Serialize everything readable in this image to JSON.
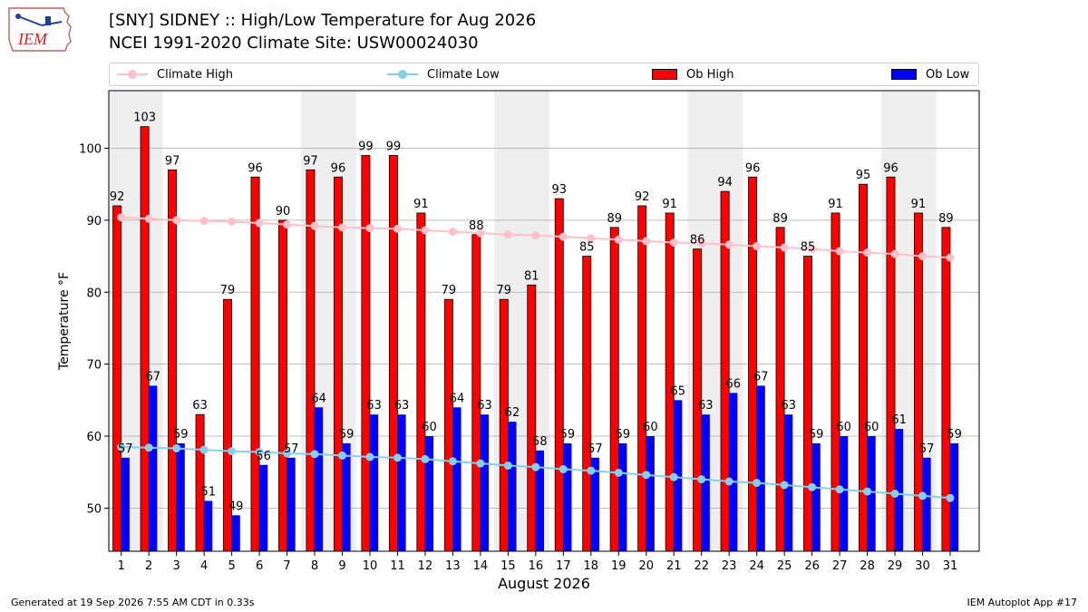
{
  "header": {
    "title_line1": "[SNY] SIDNEY :: High/Low Temperature for Aug 2026",
    "title_line2": "NCEI 1991-2020 Climate Site: USW00024030",
    "logo_text": "IEM"
  },
  "footer": {
    "left": "Generated at 19 Sep 2026 7:55 AM CDT in 0.33s",
    "right": "IEM Autoplot App #17"
  },
  "colors": {
    "ob_high": "#ff0000",
    "ob_low": "#0000ff",
    "climate_high": "#ffc0cb",
    "climate_low": "#87ceeb",
    "weekend_shade": "#eeeeee",
    "grid": "#aaaaaa"
  },
  "chart_data": {
    "type": "bar",
    "title": "[SNY] SIDNEY :: High/Low Temperature for Aug 2026",
    "subtitle": "NCEI 1991-2020 Climate Site: USW00024030",
    "xlabel": "August 2026",
    "ylabel": "Temperature °F",
    "ylim": [
      44,
      108
    ],
    "yticks": [
      50,
      60,
      70,
      80,
      90,
      100
    ],
    "grid": "horizontal",
    "legend_placement": "top",
    "categories": [
      "1",
      "2",
      "3",
      "4",
      "5",
      "6",
      "7",
      "8",
      "9",
      "10",
      "11",
      "12",
      "13",
      "14",
      "15",
      "16",
      "17",
      "18",
      "19",
      "20",
      "21",
      "22",
      "23",
      "24",
      "25",
      "26",
      "27",
      "28",
      "29",
      "30",
      "31"
    ],
    "weekend_days": [
      1,
      2,
      8,
      9,
      15,
      16,
      22,
      23,
      29,
      30
    ],
    "series": [
      {
        "name": "Climate High",
        "kind": "line",
        "values": [
          90.4,
          90.2,
          90.0,
          89.9,
          89.8,
          89.6,
          89.4,
          89.2,
          89.0,
          88.9,
          88.8,
          88.6,
          88.4,
          88.2,
          88.0,
          87.9,
          87.7,
          87.5,
          87.3,
          87.1,
          86.9,
          86.8,
          86.6,
          86.4,
          86.2,
          86.0,
          85.7,
          85.5,
          85.3,
          85.0,
          84.8
        ]
      },
      {
        "name": "Climate Low",
        "kind": "line",
        "values": [
          58.5,
          58.4,
          58.3,
          58.1,
          57.9,
          57.8,
          57.6,
          57.5,
          57.3,
          57.1,
          57.0,
          56.8,
          56.5,
          56.2,
          55.9,
          55.7,
          55.4,
          55.2,
          54.9,
          54.6,
          54.3,
          54.0,
          53.7,
          53.5,
          53.2,
          52.9,
          52.6,
          52.3,
          52.0,
          51.7,
          51.4
        ]
      },
      {
        "name": "Ob High",
        "kind": "bar",
        "values": [
          92,
          103,
          97,
          63,
          79,
          96,
          90,
          97,
          96,
          99,
          99,
          91,
          79,
          88,
          79,
          81,
          93,
          85,
          89,
          92,
          91,
          86,
          94,
          96,
          89,
          85,
          91,
          95,
          96,
          91,
          89
        ]
      },
      {
        "name": "Ob Low",
        "kind": "bar",
        "values": [
          57,
          67,
          59,
          51,
          49,
          56,
          57,
          64,
          59,
          63,
          63,
          60,
          64,
          63,
          62,
          58,
          59,
          57,
          59,
          60,
          65,
          63,
          66,
          67,
          63,
          59,
          60,
          60,
          61,
          57,
          59
        ]
      }
    ]
  }
}
